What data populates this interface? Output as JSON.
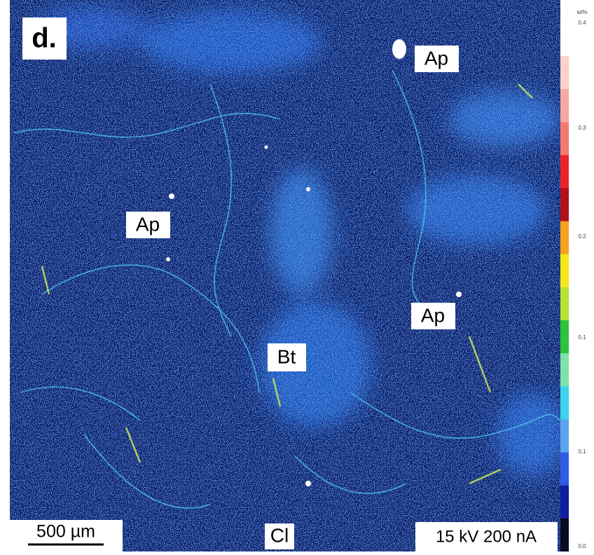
{
  "panel_label": "d.",
  "labels": [
    "Ap",
    "Ap",
    "Ap",
    "Bt"
  ],
  "element": "Cl",
  "scale_bar": "500 µm",
  "conditions": "15 kV 200 nA",
  "colorbar": {
    "unit": "wt%",
    "ticks": [
      "0.4",
      "0.3",
      "0.2",
      "0.1",
      "0.1",
      "0.0"
    ]
  }
}
